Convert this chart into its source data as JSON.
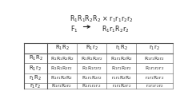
{
  "col_headers": [
    "R$_1$R$_2$",
    "R$_1$r$_2$",
    "r$_1$R$_2$",
    "r$_1$r$_2$"
  ],
  "row_headers": [
    "R$_1$R$_2$",
    "R$_1$r$_2$",
    "r$_1$R$_2$",
    "r$_1$r$_2$"
  ],
  "cells": [
    [
      "R$_1$R$_1$R$_2$R$_2$",
      "R$_1$R$_1$R$_2$r$_2$",
      "R$_1$r$_1$R$_2$R$_2$",
      "R$_1$r$_1$R$_2$r$_2$"
    ],
    [
      "R$_1$R$_1$R$_2$r$_2$",
      "R$_1$R$_1$r$_2$r$_2$",
      "R$_1$r$_1$R$_2$r$_2$",
      "R$_1$r$_1$r$_2$r$_2$"
    ],
    [
      "R$_1$r$_1$R$_2$R$_2$",
      "R$_1$r$_1$R$_2$r$_2$",
      "r$_1$r$_1$R$_2$R$_2$",
      "r$_1$r$_1$R$_2$r$_2$"
    ],
    [
      "R$_1$r$_1$R$_2$r$_2$",
      "R$_1$r$_1$r$_2$r$_2$",
      "r$_1$r$_1$R$_2$r$_2$",
      "r$_1$r$_1$r$_2$r$_2$"
    ]
  ],
  "grid_color": "#555555",
  "text_color": "#222222",
  "header_fontsize": 5.0,
  "cell_fontsize": 4.3,
  "title_fontsize": 5.8,
  "col_starts": [
    0.0,
    0.155,
    0.355,
    0.555,
    0.755,
    1.0
  ],
  "row_starts": [
    0.595,
    0.455,
    0.325,
    0.195,
    0.065,
    -0.01
  ]
}
